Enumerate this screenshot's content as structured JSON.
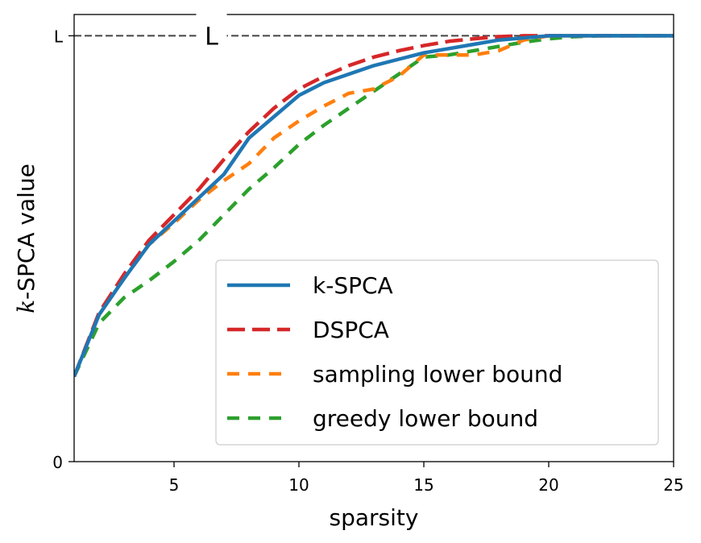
{
  "chart_data": {
    "type": "line",
    "xlabel": "sparsity",
    "ylabel_var": "k",
    "ylabel_rest": "-SPCA value",
    "xlim": [
      1,
      25
    ],
    "ylim": [
      0,
      1.05
    ],
    "xticks": [
      5,
      10,
      15,
      20,
      25
    ],
    "yticks": [
      {
        "value": 0,
        "label": "0"
      },
      {
        "value": 1,
        "label": "L"
      }
    ],
    "reference_line": {
      "y": 1,
      "label": "L",
      "label_x": 6.5,
      "color": "#444444"
    },
    "legend_position": "lower-right",
    "series": [
      {
        "name": "k-SPCA",
        "color": "#1f77b4",
        "dash": "solid",
        "x": [
          1,
          2,
          3,
          4,
          5,
          6,
          7,
          8,
          9,
          10,
          11,
          12,
          13,
          14,
          15,
          16,
          17,
          18,
          19,
          20,
          21,
          22,
          23,
          24,
          25
        ],
        "y": [
          0.2,
          0.345,
          0.43,
          0.51,
          0.565,
          0.62,
          0.675,
          0.76,
          0.81,
          0.86,
          0.89,
          0.91,
          0.93,
          0.945,
          0.96,
          0.97,
          0.98,
          0.99,
          0.995,
          1.0,
          1.0,
          1.0,
          1.0,
          1.0,
          1.0
        ]
      },
      {
        "name": "DSPCA",
        "color": "#d62728",
        "dash": "long",
        "x": [
          1,
          2,
          3,
          4,
          5,
          6,
          7,
          8,
          9,
          10,
          11,
          12,
          13,
          14,
          15,
          16,
          17,
          18,
          19,
          20,
          21,
          22,
          23,
          24,
          25
        ],
        "y": [
          0.2,
          0.35,
          0.44,
          0.52,
          0.58,
          0.64,
          0.71,
          0.775,
          0.83,
          0.875,
          0.905,
          0.93,
          0.95,
          0.965,
          0.977,
          0.987,
          0.993,
          0.998,
          1.0,
          1.0,
          1.0,
          1.0,
          1.0,
          1.0,
          1.0
        ]
      },
      {
        "name": "sampling lower bound",
        "color": "#ff7f0e",
        "dash": "short",
        "x": [
          1,
          2,
          3,
          4,
          5,
          6,
          7,
          8,
          9,
          10,
          11,
          12,
          13,
          14,
          15,
          16,
          17,
          18,
          19,
          20,
          21,
          22,
          23,
          24,
          25
        ],
        "y": [
          0.2,
          0.345,
          0.43,
          0.51,
          0.56,
          0.615,
          0.66,
          0.7,
          0.76,
          0.8,
          0.835,
          0.865,
          0.875,
          0.905,
          0.955,
          0.955,
          0.955,
          0.965,
          0.99,
          1.0,
          1.0,
          1.0,
          1.0,
          1.0,
          1.0
        ]
      },
      {
        "name": "greedy lower bound",
        "color": "#2ca02c",
        "dash": "short",
        "x": [
          1,
          2,
          3,
          4,
          5,
          6,
          7,
          8,
          9,
          10,
          11,
          12,
          13,
          14,
          15,
          16,
          17,
          18,
          19,
          20,
          21,
          22,
          23,
          24,
          25
        ],
        "y": [
          0.2,
          0.325,
          0.385,
          0.425,
          0.47,
          0.52,
          0.58,
          0.64,
          0.69,
          0.745,
          0.79,
          0.83,
          0.87,
          0.91,
          0.95,
          0.955,
          0.965,
          0.975,
          0.985,
          0.993,
          0.998,
          1.0,
          1.0,
          1.0,
          1.0
        ]
      }
    ]
  }
}
